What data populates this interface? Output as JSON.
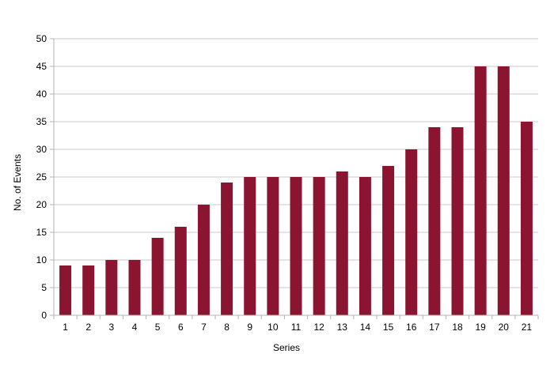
{
  "chart_data": {
    "type": "bar",
    "categories": [
      "1",
      "2",
      "3",
      "4",
      "5",
      "6",
      "7",
      "8",
      "9",
      "10",
      "11",
      "12",
      "13",
      "14",
      "15",
      "16",
      "17",
      "18",
      "19",
      "20",
      "21"
    ],
    "values": [
      9,
      9,
      10,
      10,
      14,
      16,
      20,
      24,
      25,
      25,
      25,
      25,
      26,
      25,
      27,
      30,
      34,
      34,
      45,
      45,
      35
    ],
    "title": "",
    "xlabel": "Series",
    "ylabel": "No. of Events",
    "ylim": [
      0,
      50
    ],
    "yticks": [
      "0",
      "5",
      "10",
      "15",
      "20",
      "25",
      "30",
      "35",
      "40",
      "45",
      "50"
    ],
    "grid": true,
    "legend": "none",
    "colors": {
      "bar": "#8b1530",
      "grid": "#c8c8c8",
      "axis": "#b3b3b3"
    }
  }
}
